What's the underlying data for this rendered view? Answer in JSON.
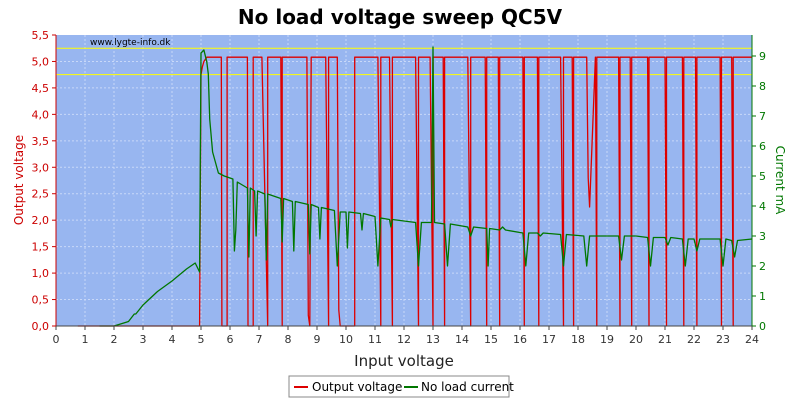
{
  "chart_data": {
    "type": "line",
    "title": "No load voltage sweep QC5V",
    "watermark": "www.lygte-info.dk",
    "xlabel": "Input voltage",
    "ylabel_left": "Output voltage",
    "ylabel_right": "Current mA",
    "xlim": [
      0,
      24
    ],
    "ylim_left": [
      0,
      5.5
    ],
    "ylim_right": [
      0,
      9.7
    ],
    "x_ticks": [
      "0",
      "1",
      "2",
      "3",
      "4",
      "5",
      "6",
      "7",
      "8",
      "9",
      "10",
      "11",
      "12",
      "13",
      "14",
      "15",
      "16",
      "17",
      "18",
      "19",
      "20",
      "21",
      "22",
      "23",
      "24"
    ],
    "y_left_ticks": [
      "0,0",
      "0,5",
      "1,0",
      "1,5",
      "2,0",
      "2,5",
      "3,0",
      "3,5",
      "4,0",
      "4,5",
      "5,0",
      "5,5"
    ],
    "y_right_ticks": [
      "0",
      "1",
      "2",
      "3",
      "4",
      "5",
      "6",
      "7",
      "8",
      "9"
    ],
    "reference_lines": [
      4.75,
      5.25
    ],
    "grid": true,
    "legend_position": "bottom",
    "colors": {
      "plot_bg": "#98b6f0",
      "voltage": "#dd0000",
      "current": "#007700",
      "left_axis": "#cc0000",
      "right_axis": "#007700",
      "reference": "#ffff00"
    },
    "series": [
      {
        "name": "Output voltage",
        "axis": "left",
        "x": [
          0.75,
          4.95,
          5.0,
          5.05,
          5.1,
          5.2,
          5.3,
          5.35,
          5.7,
          5.72,
          5.75,
          5.9,
          5.9,
          6.6,
          6.62,
          6.65,
          6.8,
          6.8,
          7.1,
          7.3,
          7.3,
          7.75,
          7.8,
          7.8,
          8.65,
          8.7,
          8.75,
          8.8,
          9.3,
          9.4,
          9.4,
          9.7,
          9.75,
          9.8,
          10.3,
          10.3,
          11.1,
          11.2,
          11.2,
          11.5,
          11.6,
          11.6,
          12.4,
          12.5,
          12.5,
          12.9,
          13.0,
          13.0,
          13.35,
          13.4,
          13.4,
          14.2,
          14.3,
          14.3,
          14.8,
          14.85,
          14.85,
          15.25,
          15.3,
          15.3,
          16.1,
          16.15,
          16.15,
          16.6,
          16.65,
          16.65,
          17.4,
          17.5,
          17.5,
          17.8,
          17.85,
          17.85,
          18.3,
          18.35,
          18.4,
          18.6,
          18.65,
          18.65,
          19.4,
          19.45,
          19.45,
          19.8,
          19.85,
          19.85,
          20.4,
          20.45,
          20.45,
          21.0,
          21.05,
          21.05,
          21.6,
          21.65,
          21.65,
          22.05,
          22.1,
          22.1,
          22.9,
          22.95,
          22.95,
          23.3,
          23.35,
          23.35,
          24.0
        ],
        "y": [
          0.0,
          0.0,
          4.75,
          4.9,
          5.0,
          5.08,
          5.08,
          5.08,
          5.08,
          0.0,
          0.0,
          0.0,
          5.08,
          5.08,
          0.0,
          0.0,
          0.0,
          5.08,
          5.08,
          0.0,
          5.08,
          5.08,
          0.0,
          5.08,
          5.08,
          0.2,
          0.0,
          5.08,
          5.08,
          0.0,
          5.08,
          5.08,
          0.3,
          0.0,
          0.0,
          5.08,
          5.08,
          0.0,
          5.08,
          5.08,
          0.0,
          5.08,
          5.08,
          0.0,
          5.08,
          5.08,
          0.0,
          5.08,
          5.08,
          0.0,
          5.08,
          5.08,
          0.0,
          5.08,
          5.08,
          0.0,
          5.08,
          5.08,
          0.0,
          5.08,
          5.08,
          0.0,
          5.08,
          5.08,
          0.0,
          5.08,
          5.08,
          0.0,
          5.08,
          5.08,
          0.0,
          5.08,
          5.08,
          2.8,
          2.25,
          5.08,
          0.0,
          5.08,
          5.08,
          0.0,
          5.08,
          5.08,
          0.0,
          5.08,
          5.08,
          0.0,
          5.08,
          5.08,
          0.0,
          5.08,
          5.08,
          0.0,
          5.08,
          5.08,
          0.0,
          5.08,
          5.08,
          0.0,
          5.08,
          5.08,
          0.0,
          5.08,
          5.08
        ]
      },
      {
        "name": "No load current",
        "axis": "right",
        "x": [
          1.5,
          2.0,
          2.5,
          2.7,
          2.75,
          3.0,
          3.5,
          4.0,
          4.5,
          4.8,
          4.95,
          5.0,
          5.1,
          5.2,
          5.25,
          5.3,
          5.4,
          5.6,
          5.8,
          6.1,
          6.15,
          6.2,
          6.25,
          6.6,
          6.65,
          6.7,
          6.85,
          6.9,
          6.95,
          7.2,
          7.25,
          7.3,
          7.75,
          7.8,
          7.85,
          8.15,
          8.2,
          8.25,
          8.7,
          8.75,
          8.8,
          9.05,
          9.1,
          9.15,
          9.6,
          9.7,
          9.8,
          10.0,
          10.05,
          10.1,
          10.5,
          10.55,
          10.6,
          11.0,
          11.1,
          11.2,
          11.5,
          11.55,
          11.6,
          12.4,
          12.5,
          12.6,
          12.95,
          13.0,
          13.05,
          13.4,
          13.5,
          13.6,
          14.2,
          14.3,
          14.4,
          14.85,
          14.9,
          14.95,
          15.3,
          15.4,
          15.5,
          16.1,
          16.2,
          16.3,
          16.6,
          16.7,
          16.8,
          17.4,
          17.5,
          17.6,
          18.2,
          18.3,
          18.4,
          18.6,
          18.7,
          18.8,
          19.4,
          19.5,
          19.6,
          19.8,
          19.9,
          20.0,
          20.4,
          20.5,
          20.6,
          21.0,
          21.1,
          21.2,
          21.6,
          21.7,
          21.8,
          22.0,
          22.1,
          22.2,
          22.9,
          23.0,
          23.1,
          23.3,
          23.4,
          23.5,
          24.0
        ],
        "y": [
          0.0,
          0.0,
          0.15,
          0.4,
          0.4,
          0.7,
          1.15,
          1.5,
          1.9,
          2.1,
          1.8,
          9.1,
          9.2,
          8.8,
          8.4,
          6.9,
          5.8,
          5.1,
          5.0,
          4.9,
          2.5,
          3.2,
          4.8,
          4.6,
          2.3,
          4.6,
          4.5,
          3.0,
          4.5,
          4.4,
          2.2,
          4.4,
          4.25,
          2.8,
          4.25,
          4.15,
          2.5,
          4.15,
          4.05,
          2.4,
          4.05,
          3.95,
          2.9,
          3.95,
          3.85,
          2.0,
          3.8,
          3.8,
          2.6,
          3.8,
          3.75,
          3.2,
          3.75,
          3.65,
          2.0,
          3.6,
          3.55,
          3.3,
          3.55,
          3.45,
          2.0,
          3.45,
          3.45,
          9.3,
          3.45,
          3.4,
          2.0,
          3.4,
          3.3,
          3.0,
          3.3,
          3.25,
          2.0,
          3.25,
          3.2,
          3.3,
          3.2,
          3.1,
          2.0,
          3.1,
          3.1,
          3.0,
          3.1,
          3.05,
          2.0,
          3.05,
          3.0,
          2.0,
          3.0,
          3.0,
          3.0,
          3.0,
          3.0,
          2.2,
          3.0,
          3.0,
          3.0,
          3.0,
          2.95,
          2.0,
          2.95,
          2.95,
          2.7,
          2.95,
          2.9,
          2.0,
          2.9,
          2.9,
          2.5,
          2.9,
          2.9,
          2.0,
          2.9,
          2.85,
          2.3,
          2.85,
          2.9
        ]
      }
    ]
  }
}
